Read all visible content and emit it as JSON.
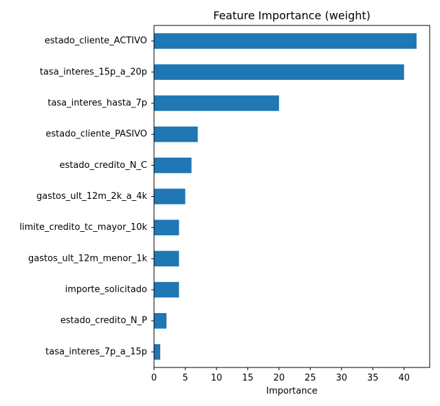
{
  "chart_data": {
    "type": "bar",
    "orientation": "horizontal",
    "title": "Feature Importance (weight)",
    "xlabel": "Importance",
    "ylabel": "",
    "categories": [
      "estado_cliente_ACTIVO",
      "tasa_interes_15p_a_20p",
      "tasa_interes_hasta_7p",
      "estado_cliente_PASIVO",
      "estado_credito_N_C",
      "gastos_ult_12m_2k_a_4k",
      "limite_credito_tc_mayor_10k",
      "gastos_ult_12m_menor_1k",
      "importe_solicitado",
      "estado_credito_N_P",
      "tasa_interes_7p_a_15p"
    ],
    "values": [
      42,
      40,
      20,
      7,
      6,
      5,
      4,
      4,
      4,
      2,
      1
    ],
    "xlim": [
      0,
      44.1
    ],
    "xticks": [
      0,
      5,
      10,
      15,
      20,
      25,
      30,
      35,
      40
    ],
    "grid": false,
    "legend": "none",
    "bar_color": "#1f77b4"
  }
}
